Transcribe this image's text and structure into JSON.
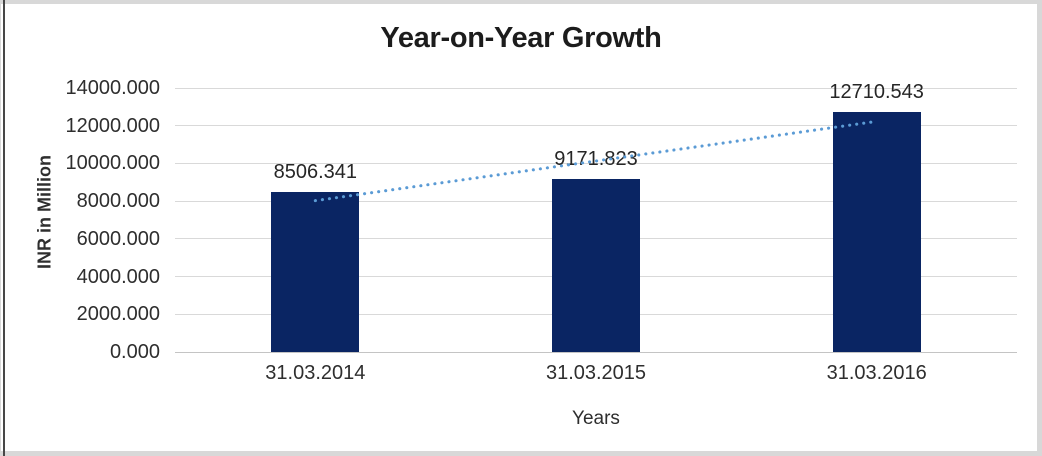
{
  "chart_data": {
    "type": "bar",
    "title": "Year-on-Year Growth",
    "categories": [
      "31.03.2014",
      "31.03.2015",
      "31.03.2016"
    ],
    "values": [
      8506.341,
      9171.823,
      12710.543
    ],
    "data_labels": [
      "8506.341",
      "9171.823",
      "12710.543"
    ],
    "xlabel": "Years",
    "ylabel": "INR in Million",
    "ylim": [
      0,
      14000
    ],
    "ytick_step": 2000,
    "ytick_labels": [
      "0.000",
      "2000.000",
      "4000.000",
      "6000.000",
      "8000.000",
      "10000.000",
      "12000.000",
      "14000.000"
    ],
    "grid": true,
    "legend_position": "none",
    "bar_color": "#0a2563",
    "trendline": {
      "type": "linear",
      "style": "dotted",
      "color": "#5b9bd5"
    }
  }
}
